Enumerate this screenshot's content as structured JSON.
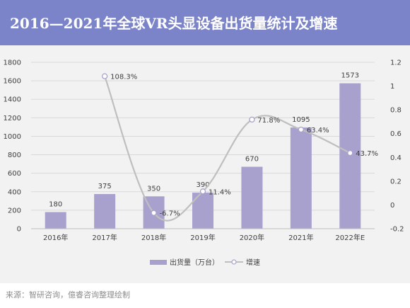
{
  "header": {
    "title": "2016—2021年全球VR头显设备出货量统计及增速"
  },
  "source": "来源：智研咨询，億睿咨询整理绘制",
  "colors": {
    "header_bg": "#7b84c8",
    "bar": "#a9a1cd",
    "line": "#bfbfbf",
    "panel_bg": "#f2f2f2"
  },
  "chart_data": {
    "type": "bar",
    "categories": [
      "2016年",
      "2017年",
      "2018年",
      "2019年",
      "2020年",
      "2021年",
      "2022年E"
    ],
    "series": [
      {
        "name": "出货量（万台）",
        "type": "bar",
        "axis": "left",
        "values": [
          180,
          375,
          350,
          390,
          670,
          1095,
          1573
        ],
        "labels": [
          "180",
          "375",
          "350",
          "390",
          "670",
          "1095",
          "1573"
        ]
      },
      {
        "name": "增速",
        "type": "line",
        "axis": "right",
        "values": [
          null,
          1.083,
          -0.067,
          0.114,
          0.718,
          0.634,
          0.437
        ],
        "labels": [
          "",
          "108.3%",
          "-6.7%",
          "11.4%",
          "71.8%",
          "63.4%",
          "43.7%"
        ]
      }
    ],
    "y_left": {
      "min": 0,
      "max": 1800,
      "ticks": [
        "0",
        "200",
        "400",
        "600",
        "800",
        "1000",
        "1200",
        "1400",
        "1600",
        "1800"
      ]
    },
    "y_right": {
      "min": -0.2,
      "max": 1.2,
      "ticks": [
        "-0.2",
        "0",
        "0.2",
        "0.4",
        "0.6",
        "0.8",
        "1",
        "1.2"
      ]
    },
    "grid": true,
    "legend_position": "bottom"
  }
}
